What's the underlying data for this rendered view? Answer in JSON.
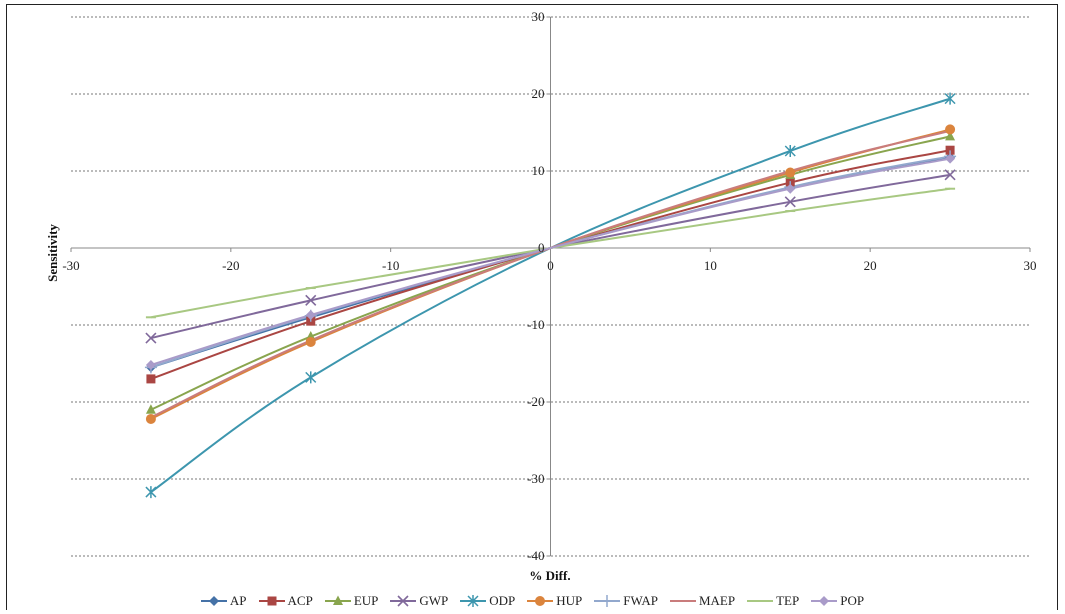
{
  "chart_data": {
    "type": "line",
    "xlabel": "% Diff.",
    "ylabel": "Sensitivity",
    "xlim": [
      -30,
      30
    ],
    "ylim": [
      -40,
      30
    ],
    "x_ticks": [
      -30,
      -20,
      -10,
      0,
      10,
      20,
      30
    ],
    "y_ticks": [
      30,
      20,
      10,
      0,
      -10,
      -20,
      -30,
      -40
    ],
    "grid": "horizontal-dashed",
    "legend_position": "bottom",
    "x": [
      -25,
      -15,
      0,
      15,
      25
    ],
    "series": [
      {
        "name": "AP",
        "color": "#4572A7",
        "marker": "diamond",
        "values": [
          -15.5,
          -9.0,
          0,
          7.8,
          11.8
        ]
      },
      {
        "name": "ACP",
        "color": "#AA4643",
        "marker": "square",
        "values": [
          -17.0,
          -9.5,
          0,
          8.5,
          12.7
        ]
      },
      {
        "name": "EUP",
        "color": "#89A54E",
        "marker": "triangle",
        "values": [
          -21.0,
          -11.5,
          0,
          9.5,
          14.5
        ]
      },
      {
        "name": "GWP",
        "color": "#80699B",
        "marker": "x",
        "values": [
          -11.7,
          -6.8,
          0,
          6.0,
          9.5
        ]
      },
      {
        "name": "ODP",
        "color": "#3D96AE",
        "marker": "star",
        "values": [
          -31.7,
          -16.8,
          0,
          12.6,
          19.4
        ]
      },
      {
        "name": "HUP",
        "color": "#DB843D",
        "marker": "circle",
        "values": [
          -22.2,
          -12.2,
          0,
          9.8,
          15.4
        ]
      },
      {
        "name": "FWAP",
        "color": "#92A8CD",
        "marker": "plus",
        "values": [
          -15.5,
          -8.8,
          0,
          7.9,
          11.9
        ]
      },
      {
        "name": "MAEP",
        "color": "#C97C7C",
        "marker": "none",
        "values": [
          -22.0,
          -12.0,
          0,
          10.0,
          15.2
        ]
      },
      {
        "name": "TEP",
        "color": "#A8C882",
        "marker": "dash",
        "values": [
          -9.0,
          -5.2,
          0,
          4.8,
          7.7
        ]
      },
      {
        "name": "POP",
        "color": "#A99BC9",
        "marker": "diamond",
        "values": [
          -15.2,
          -8.7,
          0,
          7.7,
          11.6
        ]
      }
    ]
  }
}
